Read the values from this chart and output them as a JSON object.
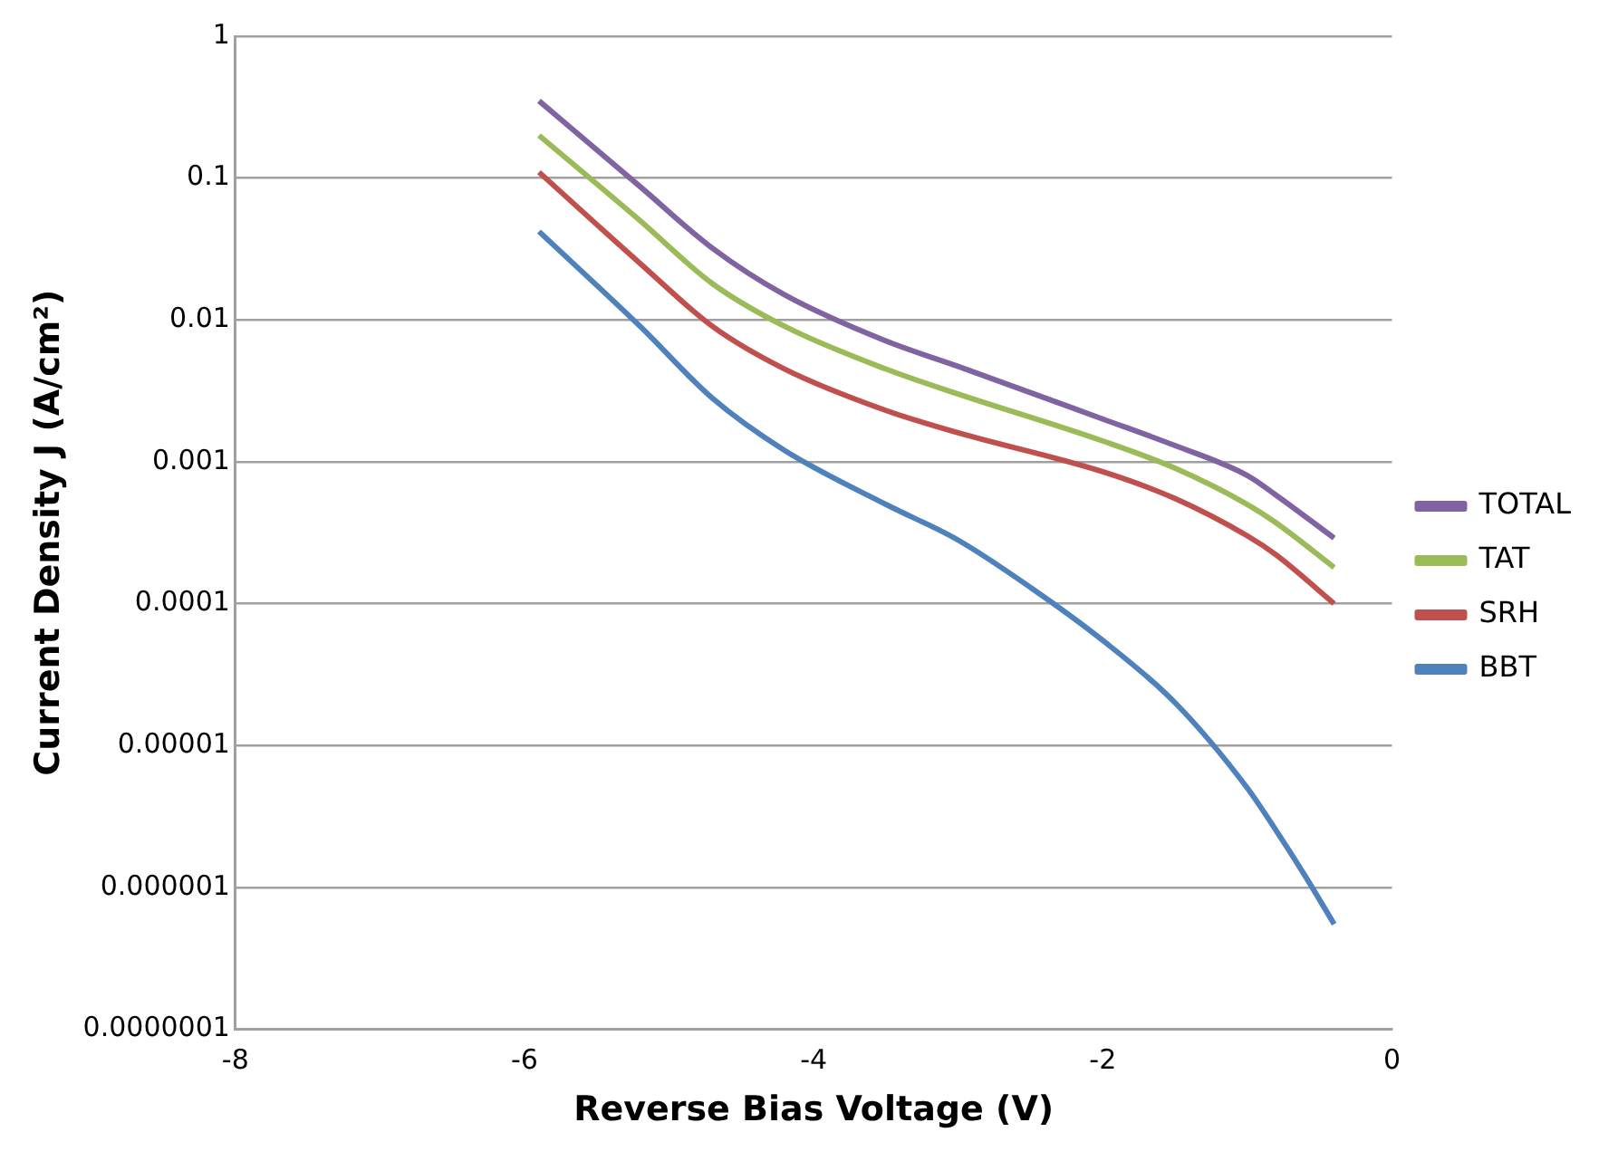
{
  "chart_data": {
    "type": "line",
    "xlabel": "Reverse Bias Voltage (V)",
    "ylabel": "Current Density J (A/cm²)",
    "xlim": [
      -8,
      0
    ],
    "xticks": [
      -8,
      -6,
      -4,
      -2,
      0
    ],
    "ylim": [
      1e-07,
      1
    ],
    "log": "y",
    "yticks": [
      {
        "value": 1e-07,
        "label": "0.0000001"
      },
      {
        "value": 1e-06,
        "label": "0.000001"
      },
      {
        "value": 1e-05,
        "label": "0.00001"
      },
      {
        "value": 0.0001,
        "label": "0.0001"
      },
      {
        "value": 0.001,
        "label": "0.001"
      },
      {
        "value": 0.01,
        "label": "0.01"
      },
      {
        "value": 0.1,
        "label": "0.1"
      },
      {
        "value": 1,
        "label": "1"
      }
    ],
    "grid": "y",
    "legend": "right",
    "marker": "none",
    "line_style": "solid",
    "series": [
      {
        "name": "TOTAL",
        "color": "#8064a2",
        "x": [
          -5.9,
          -5.2,
          -4.7,
          -4.2,
          -3.5,
          -3,
          -2,
          -1.5,
          -1,
          -0.8,
          -0.4
        ],
        "values": [
          0.35,
          0.087,
          0.032,
          0.015,
          0.0071,
          0.0047,
          0.002,
          0.0013,
          0.0008,
          0.00058,
          0.00029
        ]
      },
      {
        "name": "TAT",
        "color": "#9bbb59",
        "x": [
          -5.9,
          -5.2,
          -4.7,
          -4.2,
          -3.5,
          -3,
          -2,
          -1.5,
          -1,
          -0.8,
          -0.4
        ],
        "values": [
          0.2,
          0.05,
          0.018,
          0.009,
          0.0045,
          0.003,
          0.0014,
          0.0009,
          0.0005,
          0.00037,
          0.00018
        ]
      },
      {
        "name": "SRH",
        "color": "#c0504d",
        "x": [
          -5.9,
          -5.2,
          -4.7,
          -4.2,
          -3.5,
          -3,
          -2,
          -1.5,
          -1,
          -0.8,
          -0.4
        ],
        "values": [
          0.11,
          0.025,
          0.009,
          0.0045,
          0.0023,
          0.0016,
          0.00085,
          0.00055,
          0.0003,
          0.00022,
          0.0001
        ]
      },
      {
        "name": "BBT",
        "color": "#4f81bd",
        "x": [
          -5.9,
          -5.2,
          -4.7,
          -4.2,
          -3.5,
          -3,
          -2.5,
          -2,
          -1.5,
          -1,
          -0.8,
          -0.6,
          -0.4
        ],
        "values": [
          0.042,
          0.009,
          0.0028,
          0.0012,
          0.0005,
          0.00028,
          0.00013,
          5.5e-05,
          2e-05,
          5e-06,
          2.5e-06,
          1.2e-06,
          5.5e-07
        ]
      }
    ]
  }
}
